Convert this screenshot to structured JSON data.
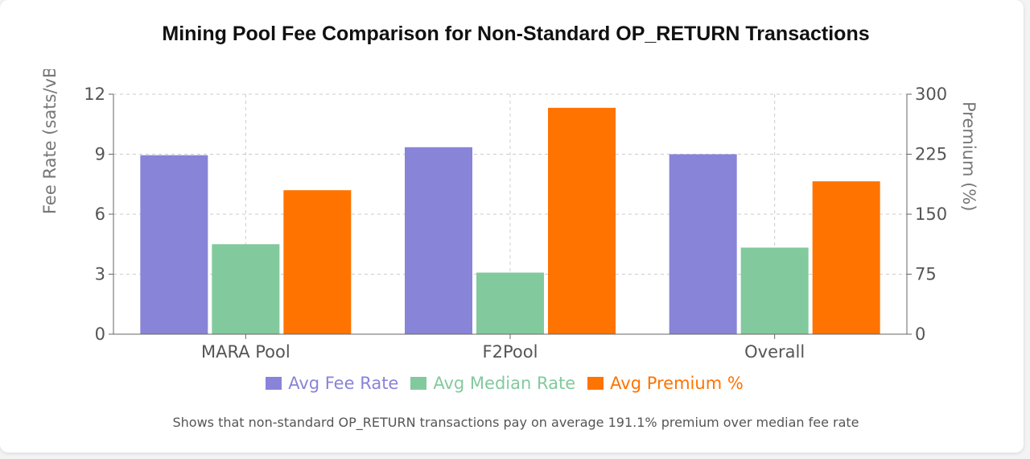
{
  "chart_data": {
    "type": "bar",
    "title": "Mining Pool Fee Comparison for Non-Standard OP_RETURN Transactions",
    "categories": [
      "MARA Pool",
      "F2Pool",
      "Overall"
    ],
    "series": [
      {
        "name": "Avg Fee Rate",
        "axis": "left",
        "color": "#8884d8",
        "values": [
          8.95,
          9.35,
          9.0
        ]
      },
      {
        "name": "Avg Median Rate",
        "axis": "left",
        "color": "#82ca9d",
        "values": [
          4.5,
          3.08,
          4.33
        ]
      },
      {
        "name": "Avg Premium %",
        "axis": "right",
        "color": "#ff7300",
        "values": [
          180,
          283,
          191.1
        ]
      }
    ],
    "ylabel": "Fee Rate (sats/vB)",
    "y2label": "Premium (%)",
    "ylim": [
      0,
      12
    ],
    "y2lim": [
      0,
      300
    ],
    "yticks": [
      "0",
      "3",
      "6",
      "9",
      "12"
    ],
    "y2ticks": [
      "0",
      "75",
      "150",
      "225",
      "300"
    ],
    "grid": true,
    "legend_position": "bottom"
  },
  "footnote": "Shows that non-standard OP_RETURN transactions pay on average 191.1% premium over median fee rate"
}
